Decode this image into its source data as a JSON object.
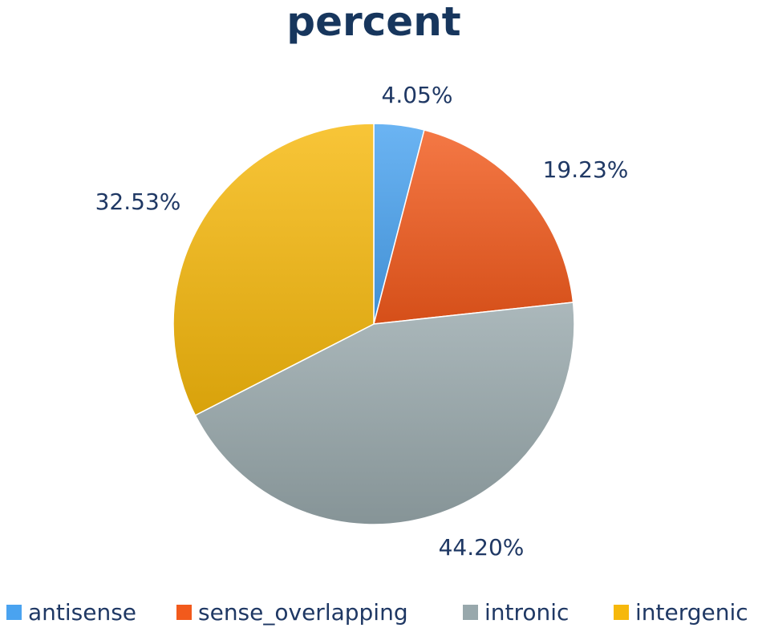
{
  "chart_data": {
    "type": "pie",
    "title": "percent",
    "slices": [
      {
        "name": "antisense",
        "value": 4.05,
        "label": "4.05%",
        "color": "#4aa3f0"
      },
      {
        "name": "sense_overlapping",
        "value": 19.23,
        "label": "19.23%",
        "color": "#f25a1c"
      },
      {
        "name": "intronic",
        "value": 44.2,
        "label": "44.20%",
        "color": "#98a8ac"
      },
      {
        "name": "intergenic",
        "value": 32.53,
        "label": "32.53%",
        "color": "#f6b80c"
      }
    ],
    "start_angle_deg": 0,
    "direction": "clockwise",
    "legend_position": "bottom"
  }
}
